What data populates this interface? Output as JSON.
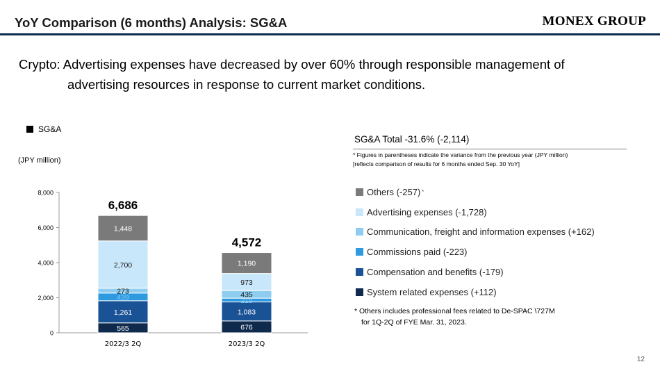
{
  "header": {
    "title": "YoY Comparison (6 months) Analysis: SG&A",
    "brand": "MONEX GROUP"
  },
  "headline": {
    "line1": "Crypto: Advertising expenses have decreased by over 60% through responsible management of",
    "line2": "advertising resources in response to current market conditions."
  },
  "section_label": "SG&A",
  "unit_label": "(JPY million)",
  "chart_data": {
    "type": "bar",
    "stacked": true,
    "categories": [
      "2022/3 2Q",
      "2023/3 2Q"
    ],
    "totals": [
      "6,686",
      "4,572"
    ],
    "ylim": [
      0,
      8000
    ],
    "yticks": [
      0,
      2000,
      4000,
      6000,
      8000
    ],
    "ytick_labels": [
      "0",
      "2,000",
      "4,000",
      "6,000",
      "8,000"
    ],
    "series": [
      {
        "name": "System related expenses (+112)",
        "color": "#0f2a4d",
        "values": [
          565,
          676
        ],
        "labels": [
          "565",
          "676"
        ]
      },
      {
        "name": "Compensation and benefits (-179)",
        "color": "#1a5296",
        "values": [
          1261,
          1083
        ],
        "labels": [
          "1,261",
          "1,083"
        ]
      },
      {
        "name": "Commissions paid (-223)",
        "color": "#2e9be0",
        "values": [
          439,
          215
        ],
        "labels": [
          "439",
          "215"
        ]
      },
      {
        "name": "Communication, freight and information expenses (+162)",
        "color": "#8ecdf0",
        "values": [
          273,
          435
        ],
        "labels": [
          "273",
          "435"
        ]
      },
      {
        "name": "Advertising expenses (-1,728)",
        "color": "#c9e7fa",
        "values": [
          2700,
          973
        ],
        "labels": [
          "2,700",
          "973"
        ]
      },
      {
        "name": "Others (-257)",
        "color": "#7a7a7a",
        "values": [
          1448,
          1190
        ],
        "labels": [
          "1,448",
          "1,190"
        ]
      }
    ]
  },
  "summary": {
    "title": "SG&A Total -31.6% (-2,114)",
    "note1": "* Figures in parentheses indicate the variance from the previous year (JPY million)",
    "note2": "[reflects comparison of results for 6 months ended Sep. 30 YoY]"
  },
  "legend": {
    "order": [
      5,
      4,
      3,
      2,
      1,
      0
    ],
    "asterisk": "*"
  },
  "footnote": {
    "line1": "* Others includes professional fees related to De-SPAC \\727M",
    "line2": "for 1Q-2Q of FYE Mar. 31, 2023."
  },
  "page_number": "12"
}
